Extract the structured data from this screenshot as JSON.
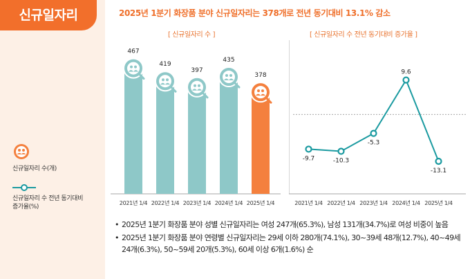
{
  "badge": "신규일자리",
  "headline": "2025년 1분기 화장품 분야 신규일자리는 378개로 전년 동기대비 13.1% 감소",
  "legend": {
    "bar_label": "신규일자리 수(개)",
    "line_label_1": "신규일자리 수 전년 동기대비",
    "line_label_2": "증가율(%)"
  },
  "colors": {
    "accent": "#f26f2b",
    "bar": "#8ec8c8",
    "bar_highlight": "#f4803e",
    "line": "#1a9aa0",
    "sidebar": "#fdf0e6"
  },
  "chart_data": [
    {
      "type": "bar",
      "title": "[ 신규일자리 수 ]",
      "categories": [
        "2021년 1/4",
        "2022년 1/4",
        "2023년 1/4",
        "2024년 1/4",
        "2025년 1/4"
      ],
      "values": [
        467,
        419,
        397,
        435,
        378
      ],
      "value_labels": [
        "467",
        "419",
        "397",
        "435",
        "378"
      ],
      "highlight_index": 4,
      "ylim": [
        0,
        520
      ],
      "grid": false
    },
    {
      "type": "line",
      "title": "[ 신규일자리 수 전년 동기대비 증가율 ]",
      "categories": [
        "2021년 1/4",
        "2022년 1/4",
        "2023년 1/4",
        "2024년 1/4",
        "2025년 1/4"
      ],
      "values": [
        -9.7,
        -10.3,
        -5.3,
        9.6,
        -13.1
      ],
      "value_labels": [
        "-9.7",
        "-10.3",
        "-5.3",
        "9.6",
        "-13.1"
      ],
      "reference_line": 0,
      "ylim": [
        -16,
        13
      ],
      "grid": false
    }
  ],
  "notes": [
    "2025년 1분기 화장품 분야 성별 신규일자리는 여성 247개(65.3%), 남성 131개(34.7%)로 여성 비중이 높음",
    "2025년 1분기 화장품 분야 연령별 신규일자리는 29세 이하 280개(74.1%), 30~39세 48개(12.7%), 40~49세 24개(6.3%), 50~59세 20개(5.3%), 60세 이상 6개(1.6%) 순"
  ]
}
